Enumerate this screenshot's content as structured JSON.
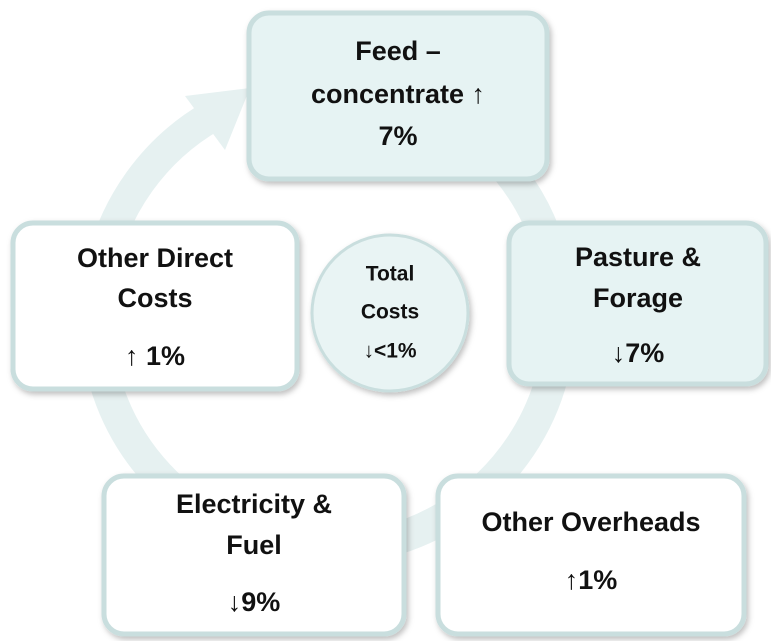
{
  "center": {
    "lines": [
      "Total",
      "Costs",
      "↓<1%"
    ]
  },
  "nodes": [
    {
      "lines": [
        "Feed –",
        "concentrate ↑",
        "7%"
      ]
    },
    {
      "lines": [
        "Pasture &",
        "Forage",
        "↓7%"
      ]
    },
    {
      "lines": [
        "Other Overheads",
        "↑1%"
      ]
    },
    {
      "lines": [
        "Electricity &",
        "Fuel",
        "↓9%"
      ]
    },
    {
      "lines": [
        "Other Direct",
        "Costs",
        "↑ 1%"
      ]
    }
  ]
}
